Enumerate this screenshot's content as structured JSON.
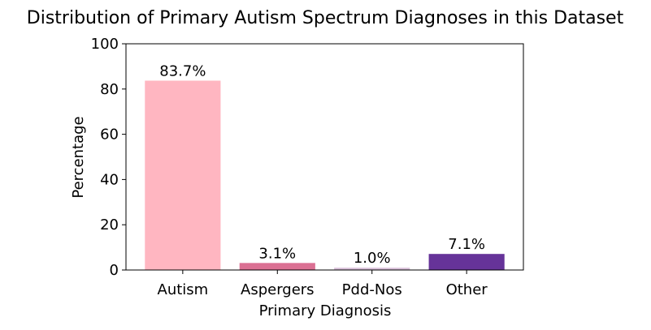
{
  "chart_data": {
    "type": "bar",
    "title": "Distribution of Primary Autism Spectrum Diagnoses in this Dataset",
    "xlabel": "Primary Diagnosis",
    "ylabel": "Percentage",
    "ylim": [
      0,
      100
    ],
    "yticks": [
      0,
      20,
      40,
      60,
      80,
      100
    ],
    "categories": [
      "Autism",
      "Aspergers",
      "Pdd-Nos",
      "Other"
    ],
    "values": [
      83.7,
      3.1,
      1.0,
      7.1
    ],
    "data_labels": [
      "83.7%",
      "3.1%",
      "1.0%",
      "7.1%"
    ],
    "colors": [
      "#ffb6c1",
      "#db7093",
      "#d8bfd8",
      "#663399"
    ],
    "grid": false,
    "legend": "none"
  }
}
